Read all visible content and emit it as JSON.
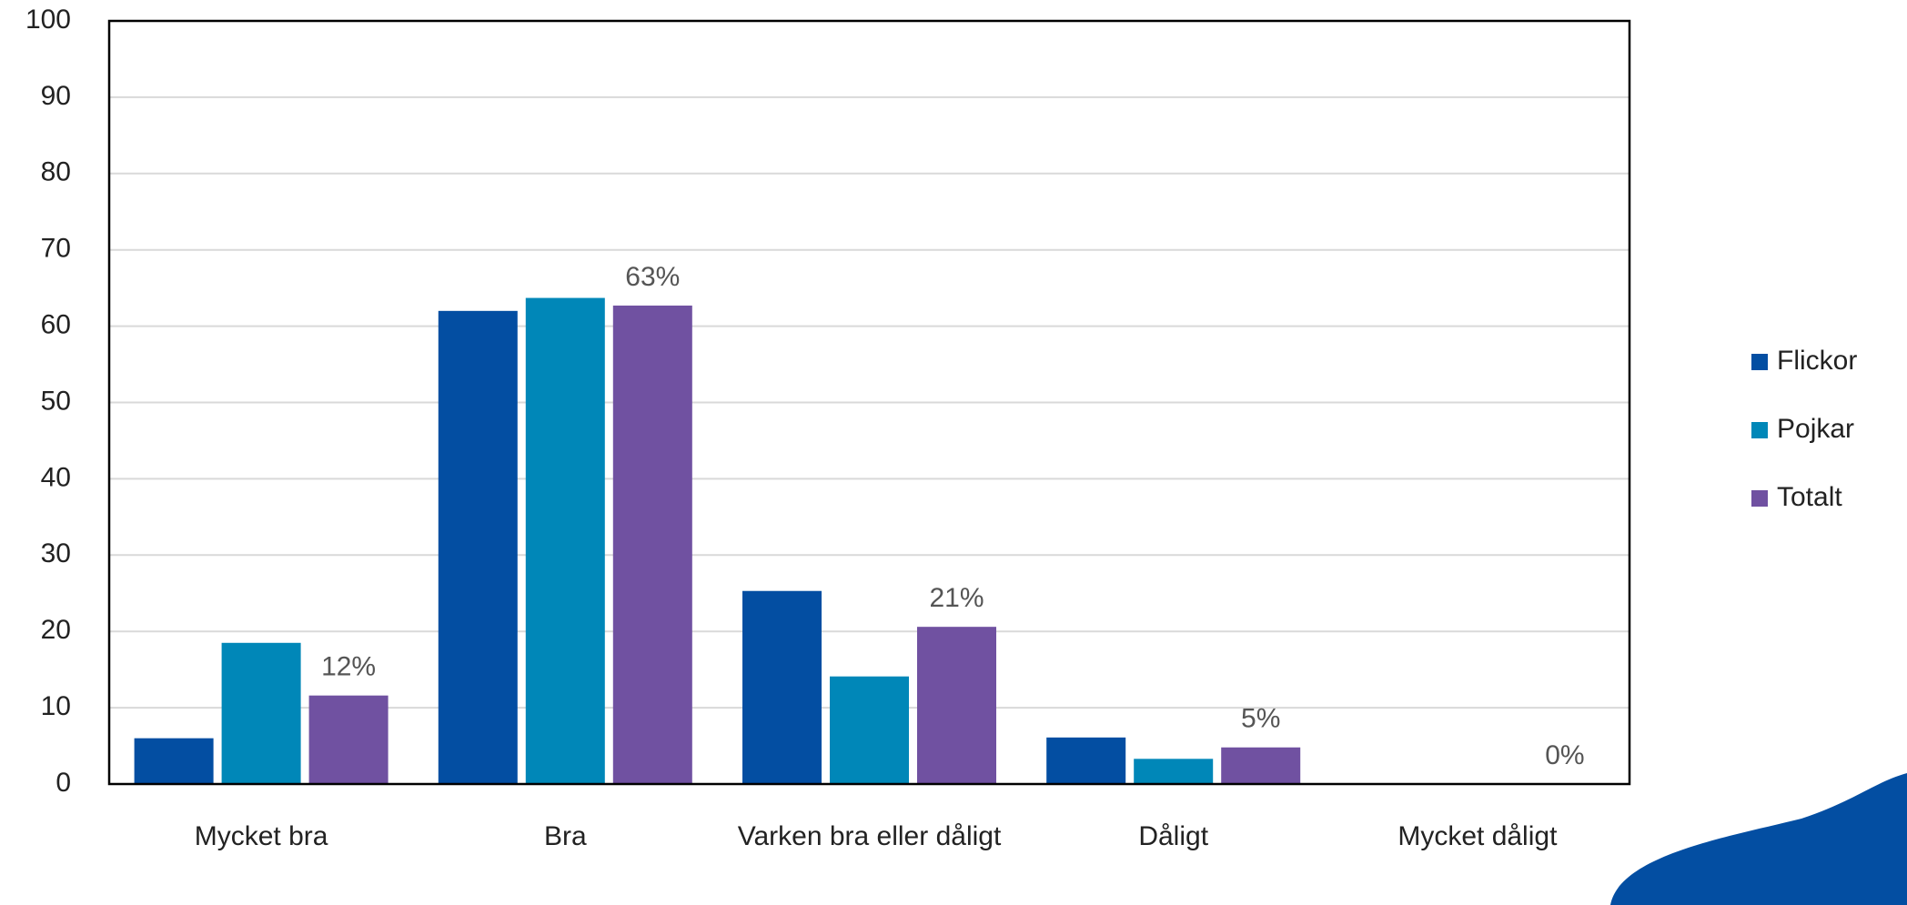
{
  "chart_data": {
    "type": "bar",
    "categories": [
      "Mycket bra",
      "Bra",
      "Varken bra eller dåligt",
      "Dåligt",
      "Mycket dåligt"
    ],
    "series": [
      {
        "name": "Flickor",
        "color": "#034ea2",
        "values": [
          6,
          62,
          25.3,
          6.1,
          0
        ]
      },
      {
        "name": "Pojkar",
        "color": "#0087b8",
        "values": [
          18.5,
          63.7,
          14.1,
          3.3,
          0
        ]
      },
      {
        "name": "Totalt",
        "color": "#7051a1",
        "values": [
          11.6,
          62.7,
          20.6,
          4.8,
          0
        ],
        "value_labels": [
          "12%",
          "63%",
          "21%",
          "5%",
          "0%"
        ]
      }
    ],
    "ylim": [
      0,
      100
    ],
    "yticks": [
      0,
      10,
      20,
      30,
      40,
      50,
      60,
      70,
      80,
      90,
      100
    ],
    "grid": true,
    "legend": "right"
  }
}
